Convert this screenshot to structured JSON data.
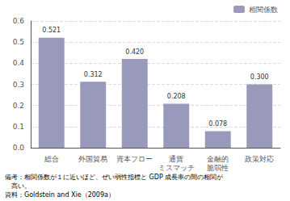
{
  "chart_data": {
    "type": "bar",
    "categories": [
      "総合",
      "外国貿易",
      "資本フロー",
      "通貨\nミスマッチ",
      "金融的\n脆弱性",
      "政策対応"
    ],
    "series": [
      {
        "name": "相関係数",
        "color": "#9999bb",
        "values": [
          0.521,
          0.312,
          0.42,
          0.208,
          0.078,
          0.3
        ],
        "value_labels": [
          "0.521",
          "0.312",
          "0.420",
          "0.208",
          "0.078",
          "0.300"
        ]
      }
    ],
    "ylim": [
      0,
      0.6
    ],
    "yticks": [
      {
        "value": 0.0,
        "label": "0.0"
      },
      0.1,
      0.2,
      0.3,
      0.4,
      0.5,
      0.6
    ],
    "grid": true,
    "legend": "upper right",
    "data_labels": true,
    "annotations": [
      "備考：相関係数が１に近いほど、ぜい弱性指標と GDP 成長率の間の相関が",
      "　高い。",
      "資料：Goldstein and Xie（2009a）"
    ]
  }
}
